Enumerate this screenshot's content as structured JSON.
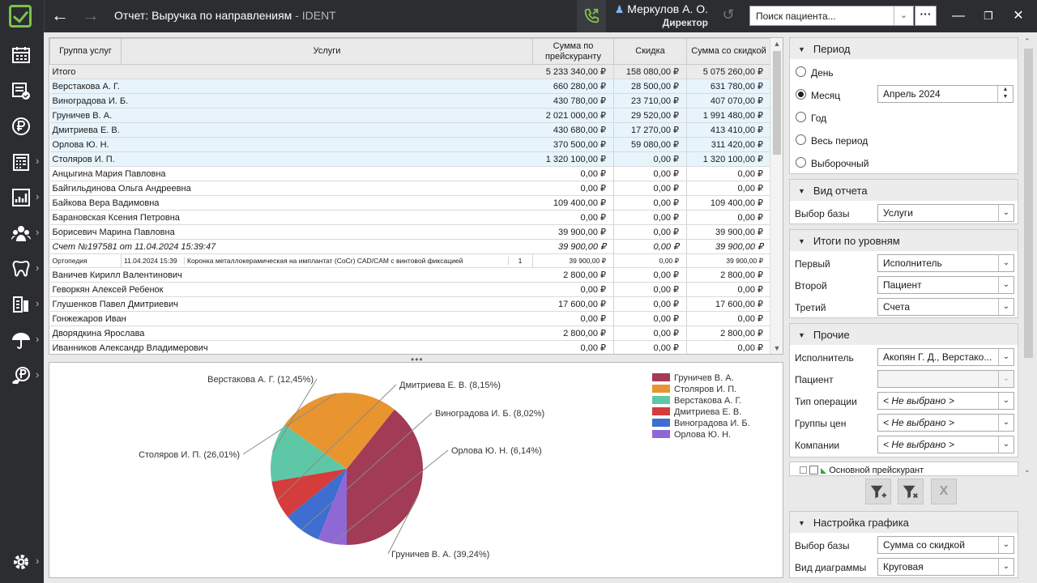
{
  "app": {
    "title": "Отчет: Выручка по направлениям",
    "title_suffix": " - IDENT",
    "user_name": "Меркулов А. О.",
    "user_role": "Директор",
    "patient_search_placeholder": "Поиск пациента...",
    "more_label": "···",
    "brand_color": "#7dc24a"
  },
  "sidebar": {
    "items": [
      {
        "icon": "schedule-icon",
        "has_submenu": false
      },
      {
        "icon": "tasks-icon",
        "has_submenu": false
      },
      {
        "icon": "ruble-icon",
        "has_submenu": false
      },
      {
        "icon": "calculator-icon",
        "has_submenu": true
      },
      {
        "icon": "reports-icon",
        "has_submenu": true
      },
      {
        "icon": "users-icon",
        "has_submenu": true
      },
      {
        "icon": "tooth-icon",
        "has_submenu": true
      },
      {
        "icon": "devices-icon",
        "has_submenu": true
      },
      {
        "icon": "insurance-umbrella-icon",
        "has_submenu": true
      },
      {
        "icon": "payments-icon",
        "has_submenu": true
      }
    ],
    "settings_icon": "gear-icon"
  },
  "table": {
    "headers": [
      "Группа услуг",
      "Услуги",
      "Сумма по прейскуранту",
      "Скидка",
      "Сумма со скидкой"
    ],
    "rows": [
      {
        "type": "total",
        "name": "Итого",
        "price": "5 233 340,00 ₽",
        "discount": "158 080,00 ₽",
        "sum": "5 075 260,00 ₽"
      },
      {
        "type": "group",
        "name": "Верстакова А. Г.",
        "price": "660 280,00 ₽",
        "discount": "28 500,00 ₽",
        "sum": "631 780,00 ₽"
      },
      {
        "type": "group",
        "name": "Виноградова И. Б.",
        "price": "430 780,00 ₽",
        "discount": "23 710,00 ₽",
        "sum": "407 070,00 ₽"
      },
      {
        "type": "group",
        "name": "Груничев В. А.",
        "price": "2 021 000,00 ₽",
        "discount": "29 520,00 ₽",
        "sum": "1 991 480,00 ₽"
      },
      {
        "type": "group",
        "name": "Дмитриева Е. В.",
        "price": "430 680,00 ₽",
        "discount": "17 270,00 ₽",
        "sum": "413 410,00 ₽"
      },
      {
        "type": "group",
        "name": "Орлова Ю. Н.",
        "price": "370 500,00 ₽",
        "discount": "59 080,00 ₽",
        "sum": "311 420,00 ₽"
      },
      {
        "type": "group",
        "name": "Столяров И. П.",
        "price": "1 320 100,00 ₽",
        "discount": "0,00 ₽",
        "sum": "1 320 100,00 ₽"
      },
      {
        "type": "patient",
        "name": "Анцыгина Мария Павловна",
        "price": "0,00 ₽",
        "discount": "0,00 ₽",
        "sum": "0,00 ₽"
      },
      {
        "type": "patient",
        "name": "Байгильдинова Ольга Андреевна",
        "price": "0,00 ₽",
        "discount": "0,00 ₽",
        "sum": "0,00 ₽"
      },
      {
        "type": "patient",
        "name": "Байкова Вера Вадимовна",
        "price": "109 400,00 ₽",
        "discount": "0,00 ₽",
        "sum": "109 400,00 ₽"
      },
      {
        "type": "patient",
        "name": "Барановская Ксения Петровна",
        "price": "0,00 ₽",
        "discount": "0,00 ₽",
        "sum": "0,00 ₽"
      },
      {
        "type": "patient",
        "name": "Борисевич Марина Павловна",
        "price": "39 900,00 ₽",
        "discount": "0,00 ₽",
        "sum": "39 900,00 ₽"
      },
      {
        "type": "invoice",
        "name": "Счет №197581 от 11.04.2024 15:39:47",
        "price": "39 900,00 ₽",
        "discount": "0,00 ₽",
        "sum": "39 900,00 ₽"
      },
      {
        "type": "detail",
        "group": "Ортопедия",
        "date": "11.04.2024 15:39",
        "service": "Коронка металлокерамическая на имплантат (CoCr) CAD/CAM с винтовой фиксацией",
        "qty": "1",
        "price": "39 900,00 ₽",
        "discount": "0,00 ₽",
        "sum": "39 900,00 ₽"
      },
      {
        "type": "patient",
        "name": "Ваничев Кирилл Валентинович",
        "price": "2 800,00 ₽",
        "discount": "0,00 ₽",
        "sum": "2 800,00 ₽"
      },
      {
        "type": "patient",
        "name": "Геворкян Алексей Ребенок",
        "price": "0,00 ₽",
        "discount": "0,00 ₽",
        "sum": "0,00 ₽"
      },
      {
        "type": "patient",
        "name": "Глушенков Павел Дмитриевич",
        "price": "17 600,00 ₽",
        "discount": "0,00 ₽",
        "sum": "17 600,00 ₽"
      },
      {
        "type": "patient",
        "name": "Гонжежаров Иван",
        "price": "0,00 ₽",
        "discount": "0,00 ₽",
        "sum": "0,00 ₽"
      },
      {
        "type": "patient",
        "name": "Дворядкина Ярослава",
        "price": "2 800,00 ₽",
        "discount": "0,00 ₽",
        "sum": "2 800,00 ₽"
      },
      {
        "type": "patient",
        "name": "Иванников Александр Владимерович",
        "price": "0,00 ₽",
        "discount": "0,00 ₽",
        "sum": "0,00 ₽"
      }
    ]
  },
  "chart_data": {
    "type": "pie",
    "categories": [
      "Груничев В. А.",
      "Столяров И. П.",
      "Верстакова А. Г.",
      "Дмитриева Е. В.",
      "Виноградова И. Б.",
      "Орлова Ю. Н."
    ],
    "values": [
      39.24,
      26.01,
      12.45,
      8.15,
      8.02,
      6.14
    ],
    "labels": [
      "Груничев В. А. (39,24%)",
      "Столяров И. П. (26,01%)",
      "Верстакова А. Г. (12,45%)",
      "Дмитриева Е. В. (8,15%)",
      "Виноградова И. Б. (8,02%)",
      "Орлова Ю. Н. (6,14%)"
    ],
    "colors": [
      "#a23b55",
      "#e8952f",
      "#5ec8a6",
      "#d53c3c",
      "#3d6ed0",
      "#9068d6"
    ],
    "legend": "top-right"
  },
  "period": {
    "title": "Период",
    "options": [
      "День",
      "Месяц",
      "Год",
      "Весь период",
      "Выборочный"
    ],
    "selected": "Месяц",
    "month_value": "Апрель   2024"
  },
  "report_view": {
    "title": "Вид отчета",
    "base_label": "Выбор базы",
    "base_value": "Услуги"
  },
  "levels": {
    "title": "Итоги по уровням",
    "first_label": "Первый",
    "first_value": "Исполнитель",
    "second_label": "Второй",
    "second_value": "Пациент",
    "third_label": "Третий",
    "third_value": "Счета"
  },
  "other": {
    "title": "Прочие",
    "executor_label": "Исполнитель",
    "executor_value": "Акопян Г. Д., Верстако...",
    "patient_label": "Пациент",
    "patient_value": "",
    "op_type_label": "Тип операции",
    "op_type_value": "< Не выбрано >",
    "price_groups_label": "Группы цен",
    "price_groups_value": "< Не выбрано >",
    "companies_label": "Компании",
    "companies_value": "< Не выбрано >",
    "tree_item": "Основной прейскурант"
  },
  "chart_settings": {
    "title": "Настройка графика",
    "base_label": "Выбор базы",
    "base_value": "Сумма со скидкой",
    "type_label": "Вид диаграммы",
    "type_value": "Круговая"
  }
}
